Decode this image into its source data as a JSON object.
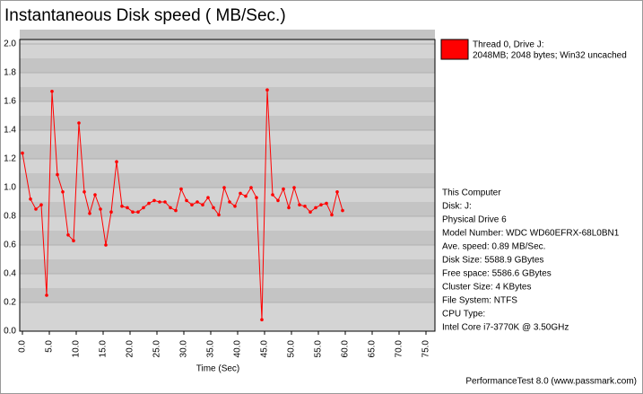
{
  "chart_data": {
    "type": "line",
    "title": "Instantaneous Disk speed ( MB/Sec.)",
    "x_label": "Time (Sec)",
    "x": [
      0,
      1.5,
      2.5,
      3.5,
      4.5,
      5.5,
      6.5,
      7.5,
      8.5,
      9.5,
      10.5,
      11.5,
      12.5,
      13.5,
      14.5,
      15.5,
      16.5,
      17.5,
      18.5,
      19.5,
      20.5,
      21.5,
      22.5,
      23.5,
      24.5,
      25.5,
      26.5,
      27.5,
      28.5,
      29.5,
      30.5,
      31.5,
      32.5,
      33.5,
      34.5,
      35.5,
      36.5,
      37.5,
      38.5,
      39.5,
      40.5,
      41.5,
      42.5,
      43.5,
      44.5,
      45.5,
      46.5,
      47.5,
      48.5,
      49.5,
      50.5,
      51.5,
      52.5,
      53.5,
      54.5,
      55.5,
      56.5,
      57.5,
      58.5,
      59.5
    ],
    "series": [
      {
        "name": "Thread 0, Drive J:",
        "description": "2048MB; 2048 bytes; Win32 uncached",
        "color": "#ff0000",
        "values": [
          1.24,
          0.92,
          0.85,
          0.88,
          0.25,
          1.67,
          1.09,
          0.97,
          0.67,
          0.63,
          1.45,
          0.97,
          0.82,
          0.95,
          0.85,
          0.6,
          0.83,
          1.18,
          0.87,
          0.86,
          0.83,
          0.83,
          0.86,
          0.89,
          0.91,
          0.9,
          0.9,
          0.86,
          0.84,
          0.99,
          0.91,
          0.88,
          0.9,
          0.88,
          0.93,
          0.86,
          0.81,
          1.0,
          0.9,
          0.87,
          0.96,
          0.94,
          1.0,
          0.93,
          0.08,
          1.68,
          0.95,
          0.91,
          0.99,
          0.86,
          1.0,
          0.88,
          0.87,
          0.83,
          0.86,
          0.88,
          0.89,
          0.81,
          0.97,
          0.84
        ]
      }
    ],
    "xlim": [
      0,
      75
    ],
    "xticks": [
      {
        "value": 0,
        "label": "0.0"
      },
      {
        "value": 5,
        "label": "5.0"
      },
      {
        "value": 10,
        "label": "10.0"
      },
      {
        "value": 15,
        "label": "15.0"
      },
      {
        "value": 20,
        "label": "20.0"
      },
      {
        "value": 25,
        "label": "25.0"
      },
      {
        "value": 30,
        "label": "30.0"
      },
      {
        "value": 35,
        "label": "35.0"
      },
      {
        "value": 40,
        "label": "40.0"
      },
      {
        "value": 45,
        "label": "45.0"
      },
      {
        "value": 50,
        "label": "50.0"
      },
      {
        "value": 55,
        "label": "55.0"
      },
      {
        "value": 60,
        "label": "60.0"
      },
      {
        "value": 65,
        "label": "65.0"
      },
      {
        "value": 70,
        "label": "70.0"
      },
      {
        "value": 75,
        "label": "75.0"
      }
    ],
    "ylim": [
      0,
      2
    ],
    "yticks": [
      {
        "value": 0,
        "label": "0.0"
      },
      {
        "value": 0.2,
        "label": "0.2"
      },
      {
        "value": 0.4,
        "label": "0.4"
      },
      {
        "value": 0.6,
        "label": "0.6"
      },
      {
        "value": 0.8,
        "label": "0.8"
      },
      {
        "value": 1.0,
        "label": "1.0"
      },
      {
        "value": 1.2,
        "label": "1.2"
      },
      {
        "value": 1.4,
        "label": "1.4"
      },
      {
        "value": 1.6,
        "label": "1.6"
      },
      {
        "value": 1.8,
        "label": "1.8"
      },
      {
        "value": 2.0,
        "label": "2.0"
      }
    ],
    "info": [
      "This Computer",
      "Disk: J:",
      "Physical Drive 6",
      "Model Number: WDC WD60EFRX-68L0BN1",
      "Ave. speed: 0.89 MB/Sec.",
      "Disk Size: 5588.9 GBytes",
      "Free space: 5586.6 GBytes",
      "Cluster Size: 4 KBytes",
      "File System: NTFS",
      "CPU Type:",
      "Intel Core i7-3770K @ 3.50GHz"
    ],
    "footer": "PerformanceTest 8.0 (www.passmark.com)"
  }
}
